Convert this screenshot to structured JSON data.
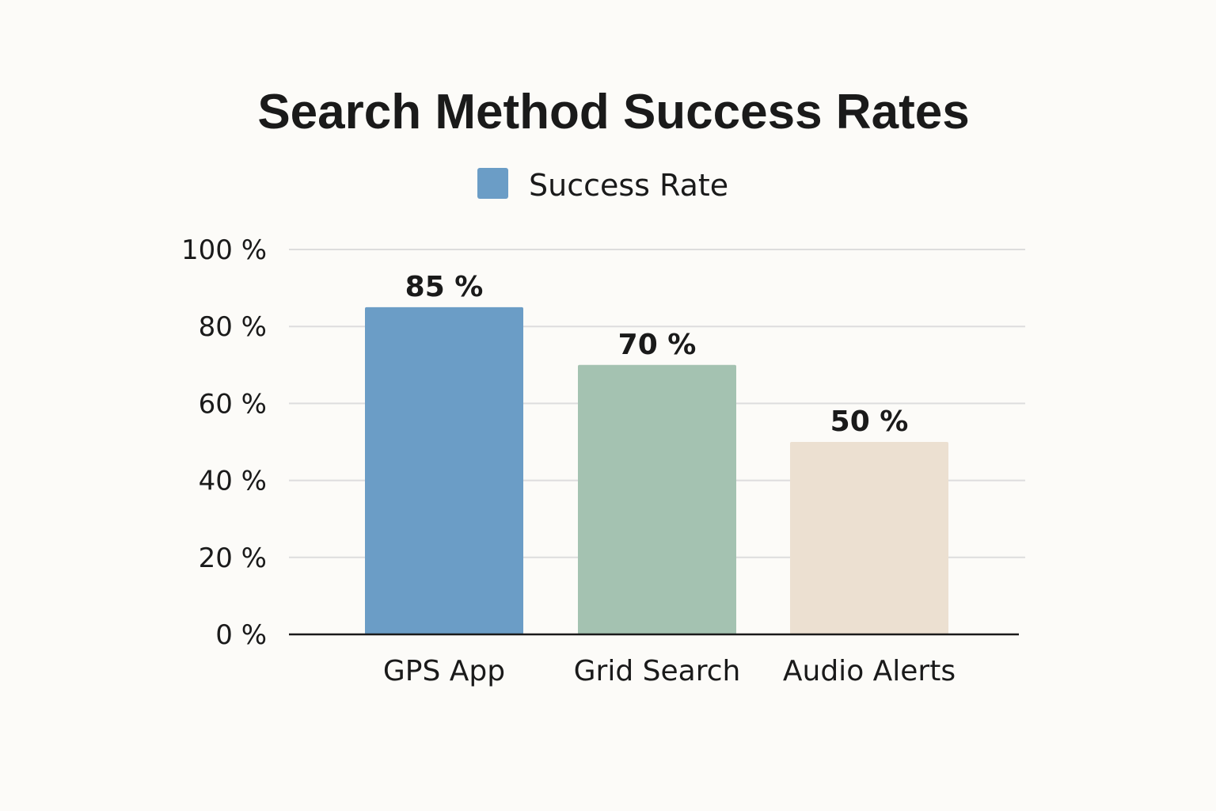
{
  "chart_data": {
    "type": "bar",
    "title": "Search Method Success Rates",
    "categories": [
      "GPS App",
      "Grid Search",
      "Audio Alerts"
    ],
    "series": [
      {
        "name": "Success Rate",
        "values": [
          85,
          70,
          50
        ],
        "data_labels": [
          "85 %",
          "70 %",
          "50 %"
        ]
      }
    ],
    "bar_colors": [
      "#6b9dc6",
      "#a4c2b1",
      "#ece0d1"
    ],
    "legend_color": "#6b9dc6",
    "ylim": [
      0,
      100
    ],
    "yticks": [
      0,
      20,
      40,
      60,
      80,
      100
    ],
    "ytick_labels": [
      "0 %",
      "20 %",
      "40 %",
      "60 %",
      "80 %",
      "100 %"
    ],
    "xlabel": "",
    "ylabel": "",
    "grid": true,
    "legend_position": "top-center"
  }
}
